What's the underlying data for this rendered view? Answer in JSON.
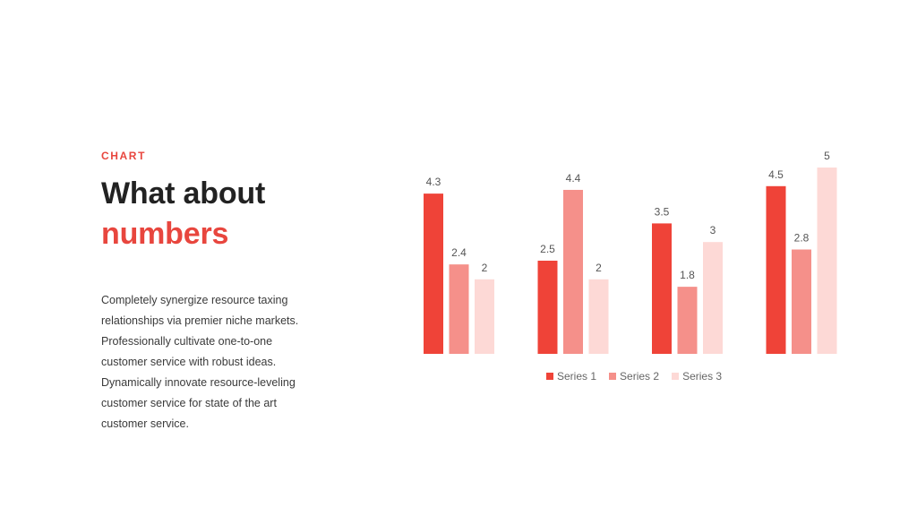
{
  "slide": {
    "kicker": "CHART",
    "title_line1": "What about",
    "title_line2": "numbers",
    "body": "Completely synergize resource taxing relationships via premier niche markets. Professionally cultivate one-to-one customer service with robust ideas. Dynamically innovate resource-leveling customer service for state of the art customer service."
  },
  "colors": {
    "accent": "#e8463e",
    "series1": "#ef4338",
    "series2": "#f5908a",
    "series3": "#fdd9d6"
  },
  "chart_data": {
    "type": "bar",
    "categories": [
      "",
      "",
      "",
      ""
    ],
    "series": [
      {
        "name": "Series 1",
        "values": [
          4.3,
          2.5,
          3.5,
          4.5
        ]
      },
      {
        "name": "Series 2",
        "values": [
          2.4,
          4.4,
          1.8,
          2.8
        ]
      },
      {
        "name": "Series 3",
        "values": [
          2,
          2,
          3,
          5
        ]
      }
    ],
    "ylim": [
      0,
      5
    ],
    "grid": false,
    "legend_position": "bottom",
    "data_labels": true
  }
}
